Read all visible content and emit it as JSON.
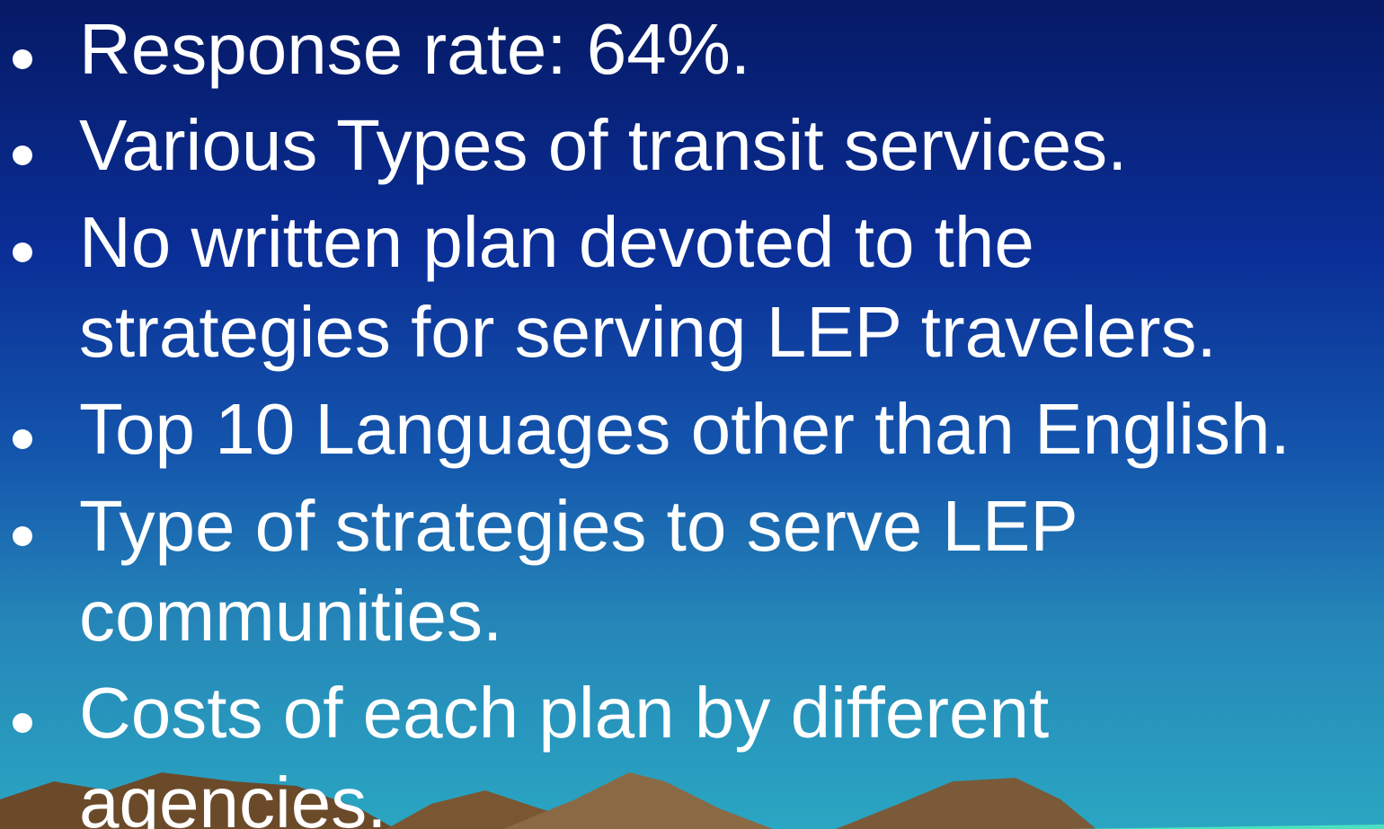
{
  "bullets": [
    [
      "Response rate: 64%."
    ],
    [
      "Various Types of transit services."
    ],
    [
      "No written plan devoted to the",
      "strategies for serving LEP travelers."
    ],
    [
      "Top 10 Languages other than English."
    ],
    [
      "Type of strategies to serve LEP",
      "communities."
    ],
    [
      "Costs of each plan by different",
      "agencies."
    ]
  ]
}
